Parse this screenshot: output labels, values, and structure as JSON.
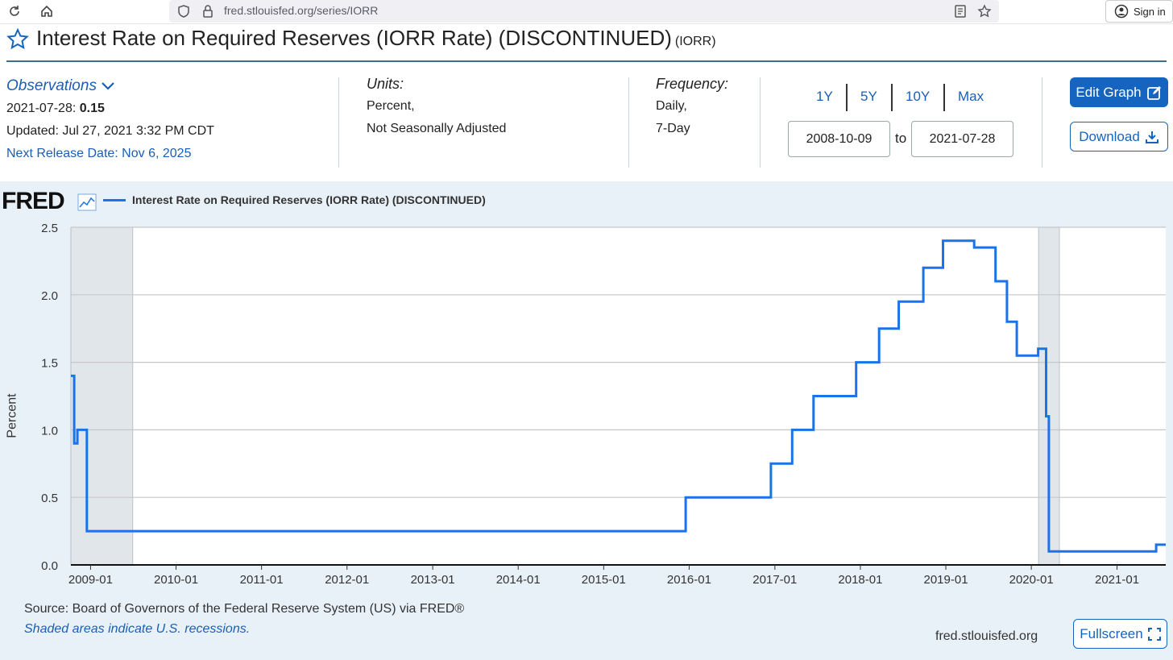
{
  "browser": {
    "url": "fred.stlouisfed.org/series/IORR",
    "sign_in": "Sign in"
  },
  "header": {
    "title": "Interest Rate on Required Reserves (IORR Rate) (DISCONTINUED)",
    "series_id": "(IORR)"
  },
  "observations": {
    "label": "Observations",
    "date": "2021-07-28:",
    "value": "0.15",
    "updated": "Updated: Jul 27, 2021 3:32 PM CDT",
    "next_release": "Next Release Date: Nov 6, 2025"
  },
  "units": {
    "label": "Units:",
    "line1": "Percent,",
    "line2": "Not Seasonally Adjusted"
  },
  "frequency": {
    "label": "Frequency:",
    "line1": "Daily,",
    "line2": "7-Day"
  },
  "range": {
    "buttons": [
      "1Y",
      "5Y",
      "10Y",
      "Max"
    ],
    "start": "2008-10-09",
    "to": "to",
    "end": "2021-07-28"
  },
  "actions": {
    "edit": "Edit Graph",
    "download": "Download",
    "fullscreen": "Fullscreen"
  },
  "graph": {
    "logo": "FRED",
    "legend": "Interest Rate on Required Reserves (IORR Rate) (DISCONTINUED)",
    "source": "Source: Board of Governors of the Federal Reserve System (US) via FRED®",
    "shaded_note": "Shaded areas indicate U.S. recessions.",
    "site": "fred.stlouisfed.org",
    "line_color": "#1a73e8"
  },
  "chart_data": {
    "type": "line",
    "xlabel": "",
    "ylabel": "Percent",
    "ylim": [
      0,
      2.5
    ],
    "yticks": [
      "0.0",
      "0.5",
      "1.0",
      "1.5",
      "2.0",
      "2.5"
    ],
    "xticks": [
      "2009-01",
      "2010-01",
      "2011-01",
      "2012-01",
      "2013-01",
      "2014-01",
      "2015-01",
      "2016-01",
      "2017-01",
      "2018-01",
      "2019-01",
      "2020-01",
      "2021-01"
    ],
    "recessions": [
      [
        "2008-10-09",
        "2009-06-30"
      ],
      [
        "2020-02-01",
        "2020-04-30"
      ]
    ],
    "series": [
      {
        "name": "Interest Rate on Required Reserves (IORR Rate) (DISCONTINUED)",
        "step": true,
        "points": [
          [
            "2008-10-09",
            1.4
          ],
          [
            "2008-10-23",
            0.9
          ],
          [
            "2008-11-06",
            1.0
          ],
          [
            "2008-12-16",
            0.25
          ],
          [
            "2015-12-17",
            0.5
          ],
          [
            "2016-12-15",
            0.75
          ],
          [
            "2017-03-16",
            1.0
          ],
          [
            "2017-06-15",
            1.25
          ],
          [
            "2017-12-14",
            1.5
          ],
          [
            "2018-03-22",
            1.75
          ],
          [
            "2018-06-14",
            1.95
          ],
          [
            "2018-09-27",
            2.2
          ],
          [
            "2018-12-20",
            2.4
          ],
          [
            "2019-05-02",
            2.35
          ],
          [
            "2019-08-01",
            2.1
          ],
          [
            "2019-09-19",
            1.8
          ],
          [
            "2019-10-31",
            1.55
          ],
          [
            "2020-01-30",
            1.6
          ],
          [
            "2020-03-04",
            1.1
          ],
          [
            "2020-03-16",
            0.1
          ],
          [
            "2021-06-17",
            0.15
          ],
          [
            "2021-07-28",
            0.15
          ]
        ]
      }
    ]
  }
}
